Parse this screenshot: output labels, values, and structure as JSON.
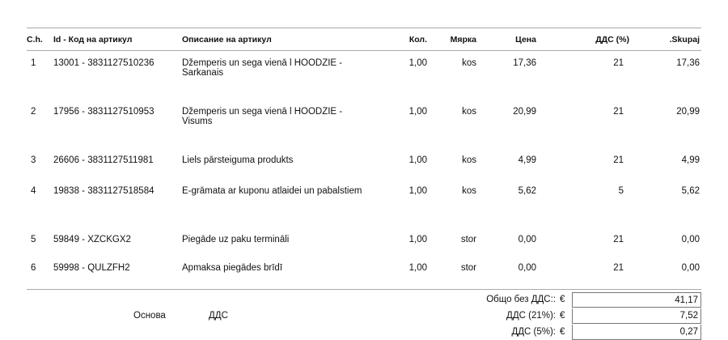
{
  "table": {
    "headers": [
      "C.h.",
      "Id - Код на артикул",
      "Описание на артикул",
      "Кол.",
      "Мярка",
      "Цена",
      "ДДС (%)",
      ".Skupaj"
    ],
    "rows": [
      {
        "n": "1",
        "id": "13001 - 3831127510236",
        "desc": "Džemperis un sega vienā l HOODZIE - Sarkanais",
        "qty": "1,00",
        "unit": "kos",
        "price": "17,36",
        "vat": "21",
        "total": "17,36"
      },
      {
        "n": "2",
        "id": "17956 - 3831127510953",
        "desc": "Džemperis un sega vienā l HOODZIE - Visums",
        "qty": "1,00",
        "unit": "kos",
        "price": "20,99",
        "vat": "21",
        "total": "20,99"
      },
      {
        "n": "3",
        "id": "26606 - 3831127511981",
        "desc": "Liels pārsteiguma produkts",
        "qty": "1,00",
        "unit": "kos",
        "price": "4,99",
        "vat": "21",
        "total": "4,99"
      },
      {
        "n": "4",
        "id": "19838 - 3831127518584",
        "desc": "E-grāmata ar kuponu atlaidei un pabalstiem",
        "qty": "1,00",
        "unit": "kos",
        "price": "5,62",
        "vat": "5",
        "total": "5,62"
      },
      {
        "n": "5",
        "id": "59849 - XZCKGX2",
        "desc": "Piegāde uz paku termināli",
        "qty": "1,00",
        "unit": "stor",
        "price": "0,00",
        "vat": "21",
        "total": "0,00"
      },
      {
        "n": "6",
        "id": "59998 - QULZFH2",
        "desc": "Apmaksa piegādes brīdī",
        "qty": "1,00",
        "unit": "stor",
        "price": "0,00",
        "vat": "21",
        "total": "0,00"
      }
    ]
  },
  "summary": {
    "base_label": "Основа",
    "vat_label": "ДДС",
    "currency": "€",
    "lines": [
      {
        "label": "Общо без ДДС::",
        "value": "41,17"
      },
      {
        "label": "ДДС (21%):",
        "value": "7,52"
      },
      {
        "label": "ДДС (5%):",
        "value": "0,27"
      }
    ]
  }
}
